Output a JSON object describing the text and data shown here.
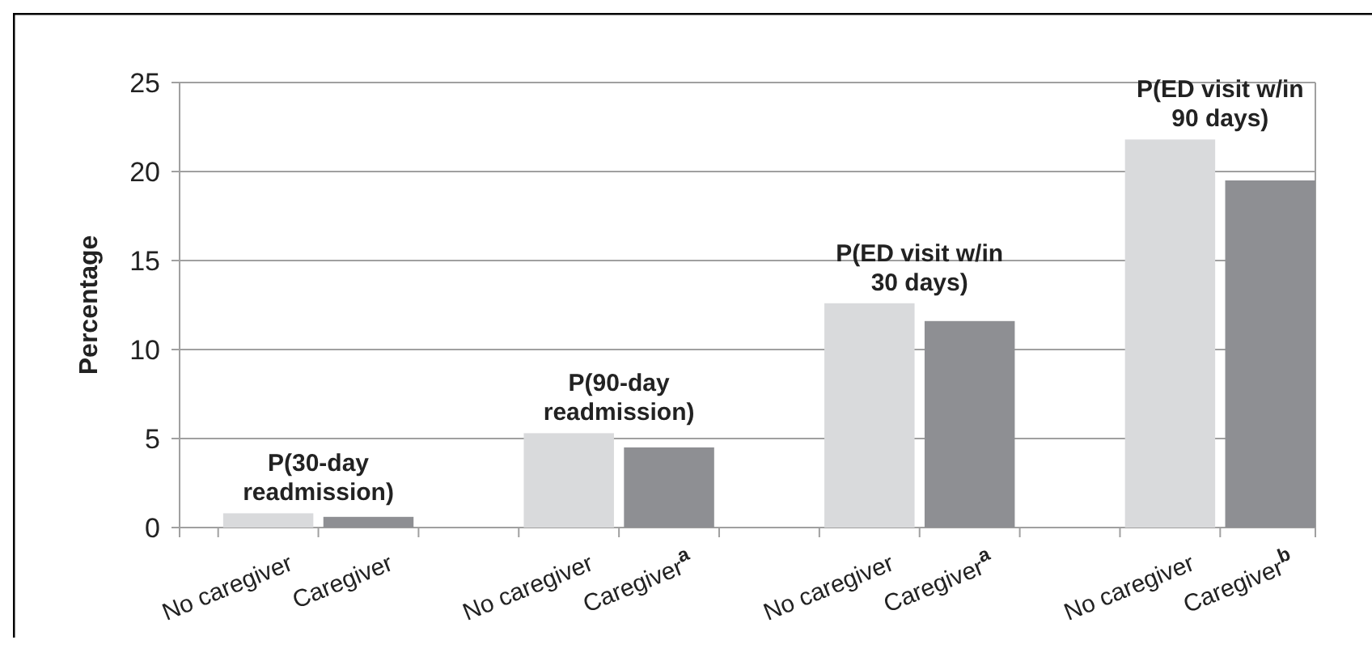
{
  "chart_data": {
    "type": "bar",
    "ylabel": "Percentage",
    "categories": [
      null,
      "No caregiver",
      "Caregiver",
      null,
      "No caregiver",
      "Caregiver$^{a}$",
      null,
      "No caregiver",
      "Caregiver$^{a}$",
      null,
      "No caregiver",
      "Caregiver$^{b}$"
    ],
    "values": [
      null,
      0.8,
      0.6,
      null,
      5.3,
      4.5,
      null,
      12.6,
      11.6,
      null,
      21.8,
      19.5
    ],
    "colors": [
      null,
      "#d9dadc",
      "#8e8f93",
      null,
      "#d9dadc",
      "#8e8f93",
      null,
      "#d9dadc",
      "#8e8f93",
      null,
      "#d9dadc",
      "#8e8f93"
    ],
    "ylim": [
      0,
      25
    ],
    "yticks": [
      0,
      5,
      10,
      15,
      20,
      25
    ],
    "grid": "y",
    "annotations": [
      "P(30-day readmission)",
      "P(90-day readmission)",
      "P(ED visit w/in 30 days)",
      "P(ED visit w/in 90 days)"
    ]
  }
}
